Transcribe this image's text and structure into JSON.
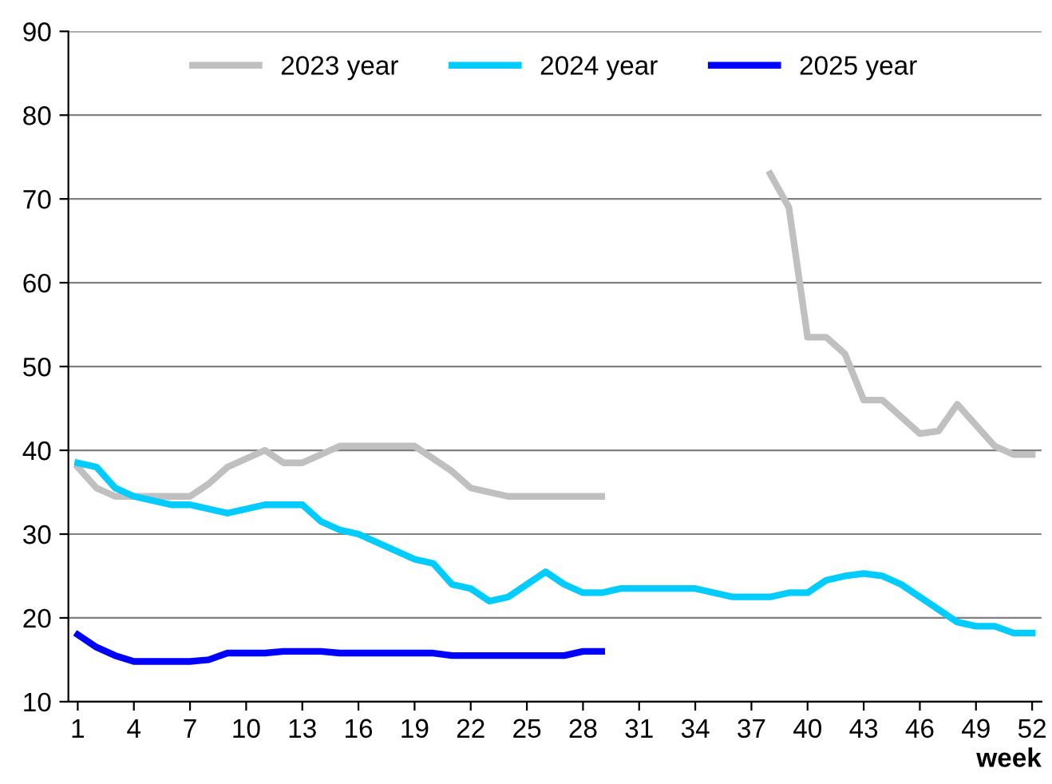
{
  "chart_data": {
    "type": "line",
    "xlabel": "week",
    "x": [
      1,
      2,
      3,
      4,
      5,
      6,
      7,
      8,
      9,
      10,
      11,
      12,
      13,
      14,
      15,
      16,
      17,
      18,
      19,
      20,
      21,
      22,
      23,
      24,
      25,
      26,
      27,
      28,
      29,
      30,
      31,
      32,
      33,
      34,
      35,
      36,
      37,
      38,
      39,
      40,
      41,
      42,
      43,
      44,
      45,
      46,
      47,
      48,
      49,
      50,
      51,
      52
    ],
    "series": [
      {
        "name": "2023 year",
        "color": "#c0c0c0",
        "values": [
          38,
          35.5,
          34.5,
          34.5,
          34.5,
          34.5,
          34.5,
          36,
          38,
          39,
          40,
          38.5,
          38.5,
          39.5,
          40.5,
          40.5,
          40.5,
          40.5,
          40.5,
          39,
          37.5,
          35.5,
          35,
          34.5,
          34.5,
          34.5,
          34.5,
          34.5,
          34.5,
          null,
          null,
          null,
          null,
          null,
          null,
          null,
          null,
          73,
          69,
          53.5,
          53.5,
          51.5,
          46,
          46,
          44,
          42,
          42.3,
          45.5,
          43,
          40.5,
          39.5,
          39.5
        ]
      },
      {
        "name": "2024 year",
        "color": "#00ccff",
        "values": [
          38.5,
          38,
          35.5,
          34.5,
          34,
          33.5,
          33.5,
          33,
          32.5,
          33,
          33.5,
          33.5,
          33.5,
          31.5,
          30.5,
          30,
          29,
          28,
          27,
          26.5,
          24,
          23.5,
          22,
          22.5,
          24,
          25.5,
          24,
          23,
          23,
          23.5,
          23.5,
          23.5,
          23.5,
          23.5,
          23,
          22.5,
          22.5,
          22.5,
          23,
          23,
          24.5,
          25,
          25.3,
          25,
          24,
          22.5,
          21,
          19.5,
          19,
          19,
          18.2,
          18.2
        ]
      },
      {
        "name": "2025 year",
        "color": "#0000ff",
        "values": [
          18,
          16.5,
          15.5,
          14.8,
          14.8,
          14.8,
          14.8,
          15,
          15.8,
          15.8,
          15.8,
          16,
          16,
          16,
          15.8,
          15.8,
          15.8,
          15.8,
          15.8,
          15.8,
          15.5,
          15.5,
          15.5,
          15.5,
          15.5,
          15.5,
          15.5,
          16,
          16,
          null,
          null,
          null,
          null,
          null,
          null,
          null,
          null,
          null,
          null,
          null,
          null,
          null,
          null,
          null,
          null,
          null,
          null,
          null,
          null,
          null,
          null,
          null
        ]
      }
    ],
    "xlim": [
      0.5,
      52.5
    ],
    "xticks": [
      1,
      4,
      7,
      10,
      13,
      16,
      19,
      22,
      25,
      28,
      31,
      34,
      37,
      40,
      43,
      46,
      49,
      52
    ],
    "ylim": [
      10,
      90
    ],
    "yticks": [
      10,
      20,
      30,
      40,
      50,
      60,
      70,
      80,
      90
    ],
    "grid": "y",
    "legend": "top",
    "marker": "none",
    "line_style": "solid"
  }
}
